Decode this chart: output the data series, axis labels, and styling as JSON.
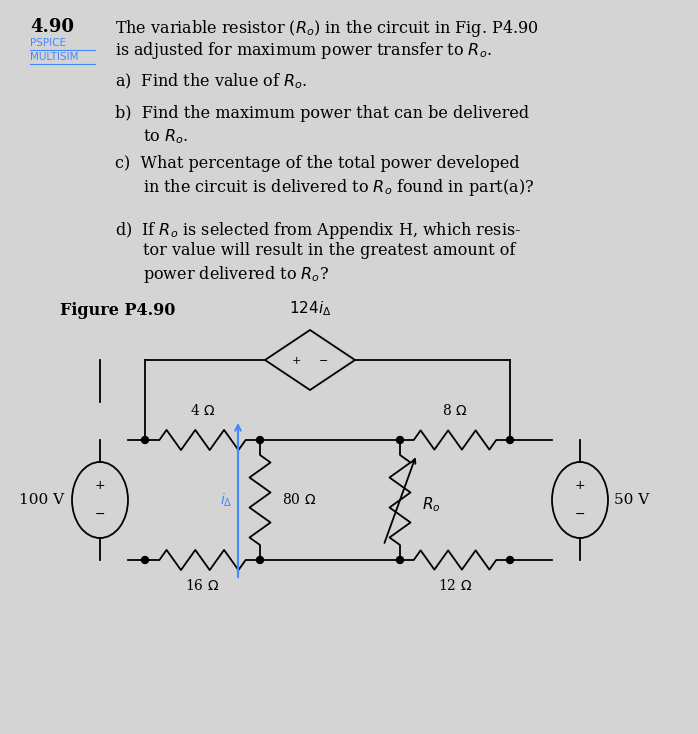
{
  "background_color": "#d4d4d4",
  "ia_color": "#4488ff",
  "lw": 1.3,
  "text": {
    "num": "4.90",
    "line1": "The variable resistor ($R_o$) in the circuit in Fig. P4.90",
    "line2": "is adjusted for maximum power transfer to $R_o$.",
    "pspice": "PSPICE",
    "multisim": "MULTISIM",
    "pspice_color": "#4488ff",
    "parts": [
      "a)  Find the value of $R_o$.",
      "b)  Find the maximum power that can be delivered\n       to $R_o$.",
      "c)  What percentage of the total power developed\n       in the circuit is delivered to $R_o$ found in part(a)?",
      "d)  If $R_o$ is selected from Appendix H, which resis-\n       tor value will result in the greatest amount of\n       power delivered to $R_o$?"
    ],
    "figure_label": "Figure P4.90"
  },
  "circuit": {
    "dep_label": "$124i_\\Delta$",
    "ia_label": "$i_\\Delta$",
    "left_v": "100 V",
    "right_v": "50 V",
    "r4": "4 $\\Omega$",
    "r8": "8 $\\Omega$",
    "r80": "80 $\\Omega$",
    "r16": "16 $\\Omega$",
    "r12": "12 $\\Omega$",
    "ro": "$R_o$"
  }
}
